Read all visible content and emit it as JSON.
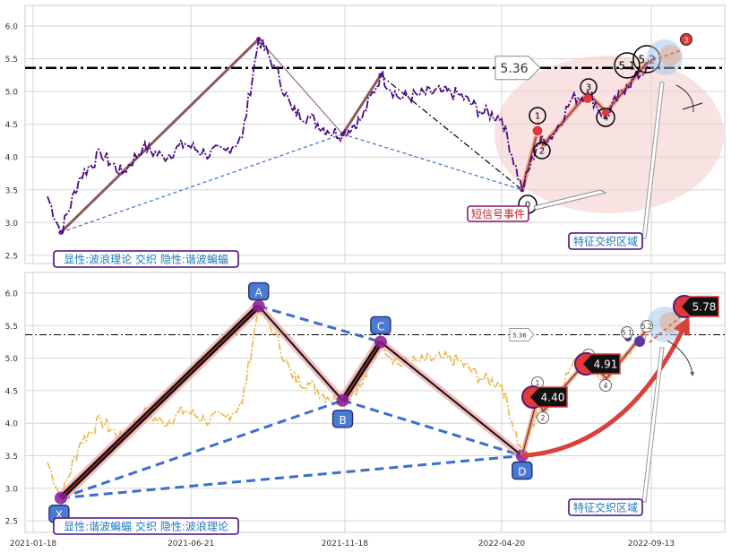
{
  "chart_data": [
    {
      "type": "line",
      "panel": "top",
      "ylim": [
        2.35,
        6.25
      ],
      "yticks": [
        "2.5",
        "3.0",
        "3.5",
        "4.0",
        "4.5",
        "5.0",
        "5.5",
        "6.0"
      ],
      "hline": {
        "value": 5.36,
        "label": "5.36"
      },
      "price_anchors": [
        [
          "2021-02-01",
          3.4
        ],
        [
          "2021-02-14",
          2.85
        ],
        [
          "2021-03-05",
          3.7
        ],
        [
          "2021-03-25",
          4.05
        ],
        [
          "2021-04-15",
          3.75
        ],
        [
          "2021-05-05",
          4.15
        ],
        [
          "2021-05-25",
          4.0
        ],
        [
          "2021-06-15",
          4.2
        ],
        [
          "2021-07-05",
          4.05
        ],
        [
          "2021-07-25",
          4.1
        ],
        [
          "2021-08-10",
          4.3
        ],
        [
          "2021-08-26",
          5.8
        ],
        [
          "2021-09-10",
          5.4
        ],
        [
          "2021-09-28",
          4.7
        ],
        [
          "2021-10-15",
          4.6
        ],
        [
          "2021-11-01",
          4.4
        ],
        [
          "2021-11-16",
          4.35
        ],
        [
          "2021-12-05",
          4.6
        ],
        [
          "2021-12-23",
          5.25
        ],
        [
          "2022-01-10",
          4.9
        ],
        [
          "2022-01-30",
          4.95
        ],
        [
          "2022-02-20",
          5.0
        ],
        [
          "2022-03-10",
          4.95
        ],
        [
          "2022-03-30",
          4.7
        ],
        [
          "2022-04-20",
          4.6
        ],
        [
          "2022-05-10",
          3.5
        ],
        [
          "2022-05-25",
          4.2
        ],
        [
          "2022-06-10",
          4.35
        ],
        [
          "2022-06-28",
          4.9
        ],
        [
          "2022-07-15",
          4.95
        ],
        [
          "2022-07-30",
          4.6
        ],
        [
          "2022-08-20",
          5.1
        ],
        [
          "2022-09-08",
          5.35
        ],
        [
          "2022-09-18",
          5.5
        ]
      ],
      "wave_lines": [
        {
          "from": [
            "2021-02-14",
            2.85
          ],
          "to": [
            "2021-08-26",
            5.8
          ]
        },
        {
          "from": [
            "2021-11-16",
            4.35
          ],
          "to": [
            "2021-12-23",
            5.25
          ]
        }
      ],
      "wave_labels": [
        "1",
        "2",
        "3",
        "4",
        "5.1",
        "5.2",
        "0"
      ],
      "projection_label": "3",
      "event_label": "短信号事件",
      "region_label": "特征交织区域",
      "caption": "显性:波浪理论 交织 隐性:谐波蝙蝠"
    },
    {
      "type": "line",
      "panel": "bottom",
      "ylim": [
        2.35,
        6.25
      ],
      "yticks": [
        "2.5",
        "3.0",
        "3.5",
        "4.0",
        "4.5",
        "5.0",
        "5.5",
        "6.0"
      ],
      "xticks": [
        "2021-01-18",
        "2021-06-21",
        "2021-11-18",
        "2022-04-20",
        "2022-09-13"
      ],
      "hline": {
        "value": 5.36,
        "label": "5.36"
      },
      "harmonic_points": [
        {
          "label": "X",
          "date": "2021-02-14",
          "value": 2.85
        },
        {
          "label": "A",
          "date": "2021-08-26",
          "value": 5.8
        },
        {
          "label": "B",
          "date": "2021-11-16",
          "value": 4.35
        },
        {
          "label": "C",
          "date": "2021-12-23",
          "value": 5.25
        },
        {
          "label": "D",
          "date": "2022-05-10",
          "value": 3.5
        }
      ],
      "targets": [
        "4.40",
        "4.91",
        "5.78"
      ],
      "wave_labels": [
        "1",
        "2",
        "3",
        "4",
        "5.1",
        "5.2"
      ],
      "region_label": "特征交织区域",
      "caption": "显性:谐波蝙蝠 交织 隐性:波浪理论"
    }
  ],
  "colors": {
    "price_top": "#4b0a82",
    "price_bottom": "#e8b84a",
    "wave_line": "#8b5a5a",
    "blue_dash": "#3a6fcc",
    "ellipse": "#f4c6c6",
    "label_border": "#4b0a82",
    "label_text": "#1e7ab8",
    "red_arrow": "#d9423a",
    "target_box": "#111111"
  }
}
